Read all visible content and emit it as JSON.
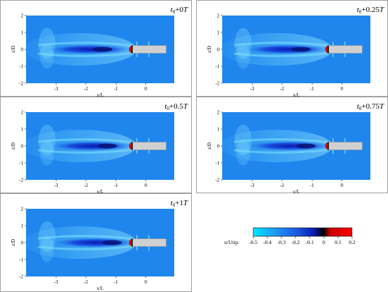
{
  "figure": {
    "x_axis_label": "x/L",
    "y_axis_label": "z/D",
    "x_ticks": [
      "-3",
      "-2",
      "-1",
      "0"
    ],
    "y_ticks": [
      "2",
      "1",
      "0",
      "-1",
      "-2"
    ],
    "panels": [
      {
        "time_base": "t",
        "time_sub": "0",
        "time_suffix": "+0",
        "time_T": "T"
      },
      {
        "time_base": "t",
        "time_sub": "0",
        "time_suffix": "+0.25",
        "time_T": "T"
      },
      {
        "time_base": "t",
        "time_sub": "0",
        "time_suffix": "+0.5",
        "time_T": "T"
      },
      {
        "time_base": "t",
        "time_sub": "0",
        "time_suffix": "+0.75",
        "time_T": "T"
      },
      {
        "time_base": "t",
        "time_sub": "0",
        "time_suffix": "+1",
        "time_T": "T"
      }
    ]
  },
  "colorbar": {
    "label": "u/Utip:",
    "ticks": [
      "-0.5",
      "-0.4",
      "-0.3",
      "-0.2",
      "-0.1",
      "0",
      "0.1",
      "0.2"
    ],
    "range": [
      -0.5,
      0.2
    ],
    "colors": [
      "#00e0ff",
      "#1a8cf0",
      "#1a50dd",
      "#0a1fb0",
      "#000000",
      "#ff0000"
    ]
  }
}
